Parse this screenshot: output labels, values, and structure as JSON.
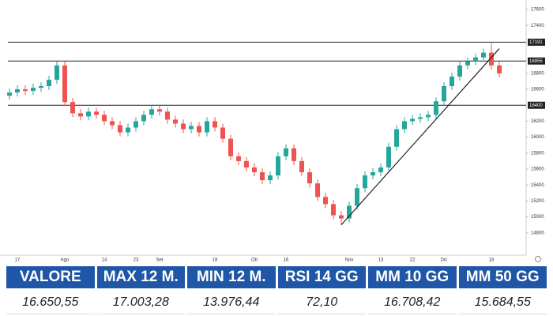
{
  "chart_data": {
    "type": "candlestick",
    "categories": [
      null,
      "17",
      null,
      null,
      null,
      null,
      null,
      "Ago",
      null,
      null,
      null,
      null,
      "14",
      null,
      null,
      null,
      "23",
      null,
      null,
      "Set",
      null,
      null,
      null,
      null,
      null,
      null,
      "18",
      null,
      null,
      null,
      null,
      "Ott",
      null,
      null,
      null,
      "16",
      null,
      null,
      null,
      null,
      null,
      null,
      null,
      "Nov",
      null,
      null,
      null,
      "13",
      null,
      null,
      null,
      "22",
      null,
      null,
      null,
      "Dic",
      null,
      null,
      null,
      null,
      null,
      "18",
      null
    ],
    "open": [
      16520,
      16560,
      16600,
      16580,
      16620,
      16640,
      16720,
      16900,
      16440,
      16300,
      16260,
      16320,
      16280,
      16200,
      16150,
      16060,
      16120,
      16200,
      16280,
      16350,
      16320,
      16220,
      16170,
      16100,
      16140,
      16060,
      16200,
      16120,
      15980,
      15760,
      15700,
      15620,
      15560,
      15460,
      15520,
      15760,
      15860,
      15700,
      15560,
      15420,
      15250,
      15160,
      15020,
      14980,
      15140,
      15360,
      15520,
      15560,
      15620,
      15880,
      16100,
      16200,
      16230,
      16250,
      16280,
      16450,
      16640,
      16760,
      16900,
      16950,
      17000,
      17060,
      16900
    ],
    "high": [
      16610,
      16650,
      16650,
      16670,
      16690,
      16770,
      16950,
      16950,
      16490,
      16350,
      16370,
      16370,
      16330,
      16250,
      16200,
      16170,
      16250,
      16330,
      16400,
      16400,
      16370,
      16270,
      16220,
      16190,
      16190,
      16250,
      16250,
      16170,
      16030,
      15810,
      15750,
      15670,
      15610,
      15570,
      15810,
      15910,
      15910,
      15750,
      15610,
      15470,
      15300,
      15210,
      15070,
      15190,
      15410,
      15570,
      15610,
      15670,
      15930,
      16150,
      16250,
      16280,
      16300,
      16330,
      16500,
      16690,
      16810,
      16950,
      17000,
      17050,
      17110,
      17180,
      16950
    ],
    "low": [
      16470,
      16510,
      16530,
      16530,
      16570,
      16590,
      16670,
      16390,
      16250,
      16210,
      16210,
      16230,
      16150,
      16100,
      16010,
      16010,
      16070,
      16150,
      16230,
      16270,
      16170,
      16120,
      16050,
      16050,
      16010,
      16010,
      16070,
      15930,
      15710,
      15650,
      15570,
      15510,
      15410,
      15410,
      15470,
      15710,
      15650,
      15510,
      15370,
      15200,
      15110,
      14970,
      14900,
      14930,
      15090,
      15310,
      15470,
      15510,
      15570,
      15830,
      16050,
      16150,
      16180,
      16200,
      16230,
      16400,
      16590,
      16710,
      16850,
      16900,
      16950,
      16850,
      16750
    ],
    "close": [
      16560,
      16600,
      16580,
      16620,
      16640,
      16720,
      16900,
      16440,
      16300,
      16260,
      16320,
      16280,
      16200,
      16150,
      16060,
      16120,
      16200,
      16280,
      16350,
      16320,
      16220,
      16170,
      16100,
      16140,
      16060,
      16200,
      16120,
      15980,
      15760,
      15700,
      15620,
      15560,
      15460,
      15520,
      15760,
      15860,
      15700,
      15560,
      15420,
      15250,
      15160,
      15020,
      14980,
      15140,
      15360,
      15520,
      15560,
      15620,
      15880,
      16100,
      16200,
      16230,
      16250,
      16280,
      16450,
      16640,
      16760,
      16900,
      16950,
      17000,
      17060,
      16900,
      16800
    ],
    "up_color": "#26a69a",
    "down_color": "#ef5350",
    "ylim": [
      14520,
      17720
    ],
    "yticks": [
      14800,
      15000,
      15200,
      15400,
      15600,
      15800,
      16000,
      16200,
      16600,
      16800,
      17400,
      17600
    ],
    "levels": [
      17191,
      16955,
      16400
    ],
    "trendline_x": [
      42,
      62
    ],
    "trendline_y": [
      14900,
      17110
    ]
  },
  "table": {
    "headers": [
      "VALORE",
      "MAX 12 M.",
      "MIN 12 M.",
      "RSI 14 GG",
      "MM 10 GG",
      "MM 50 GG"
    ],
    "values": [
      "16.650,55",
      "17.003,28",
      "13.976,44",
      "72,10",
      "16.708,42",
      "15.684,55"
    ]
  }
}
